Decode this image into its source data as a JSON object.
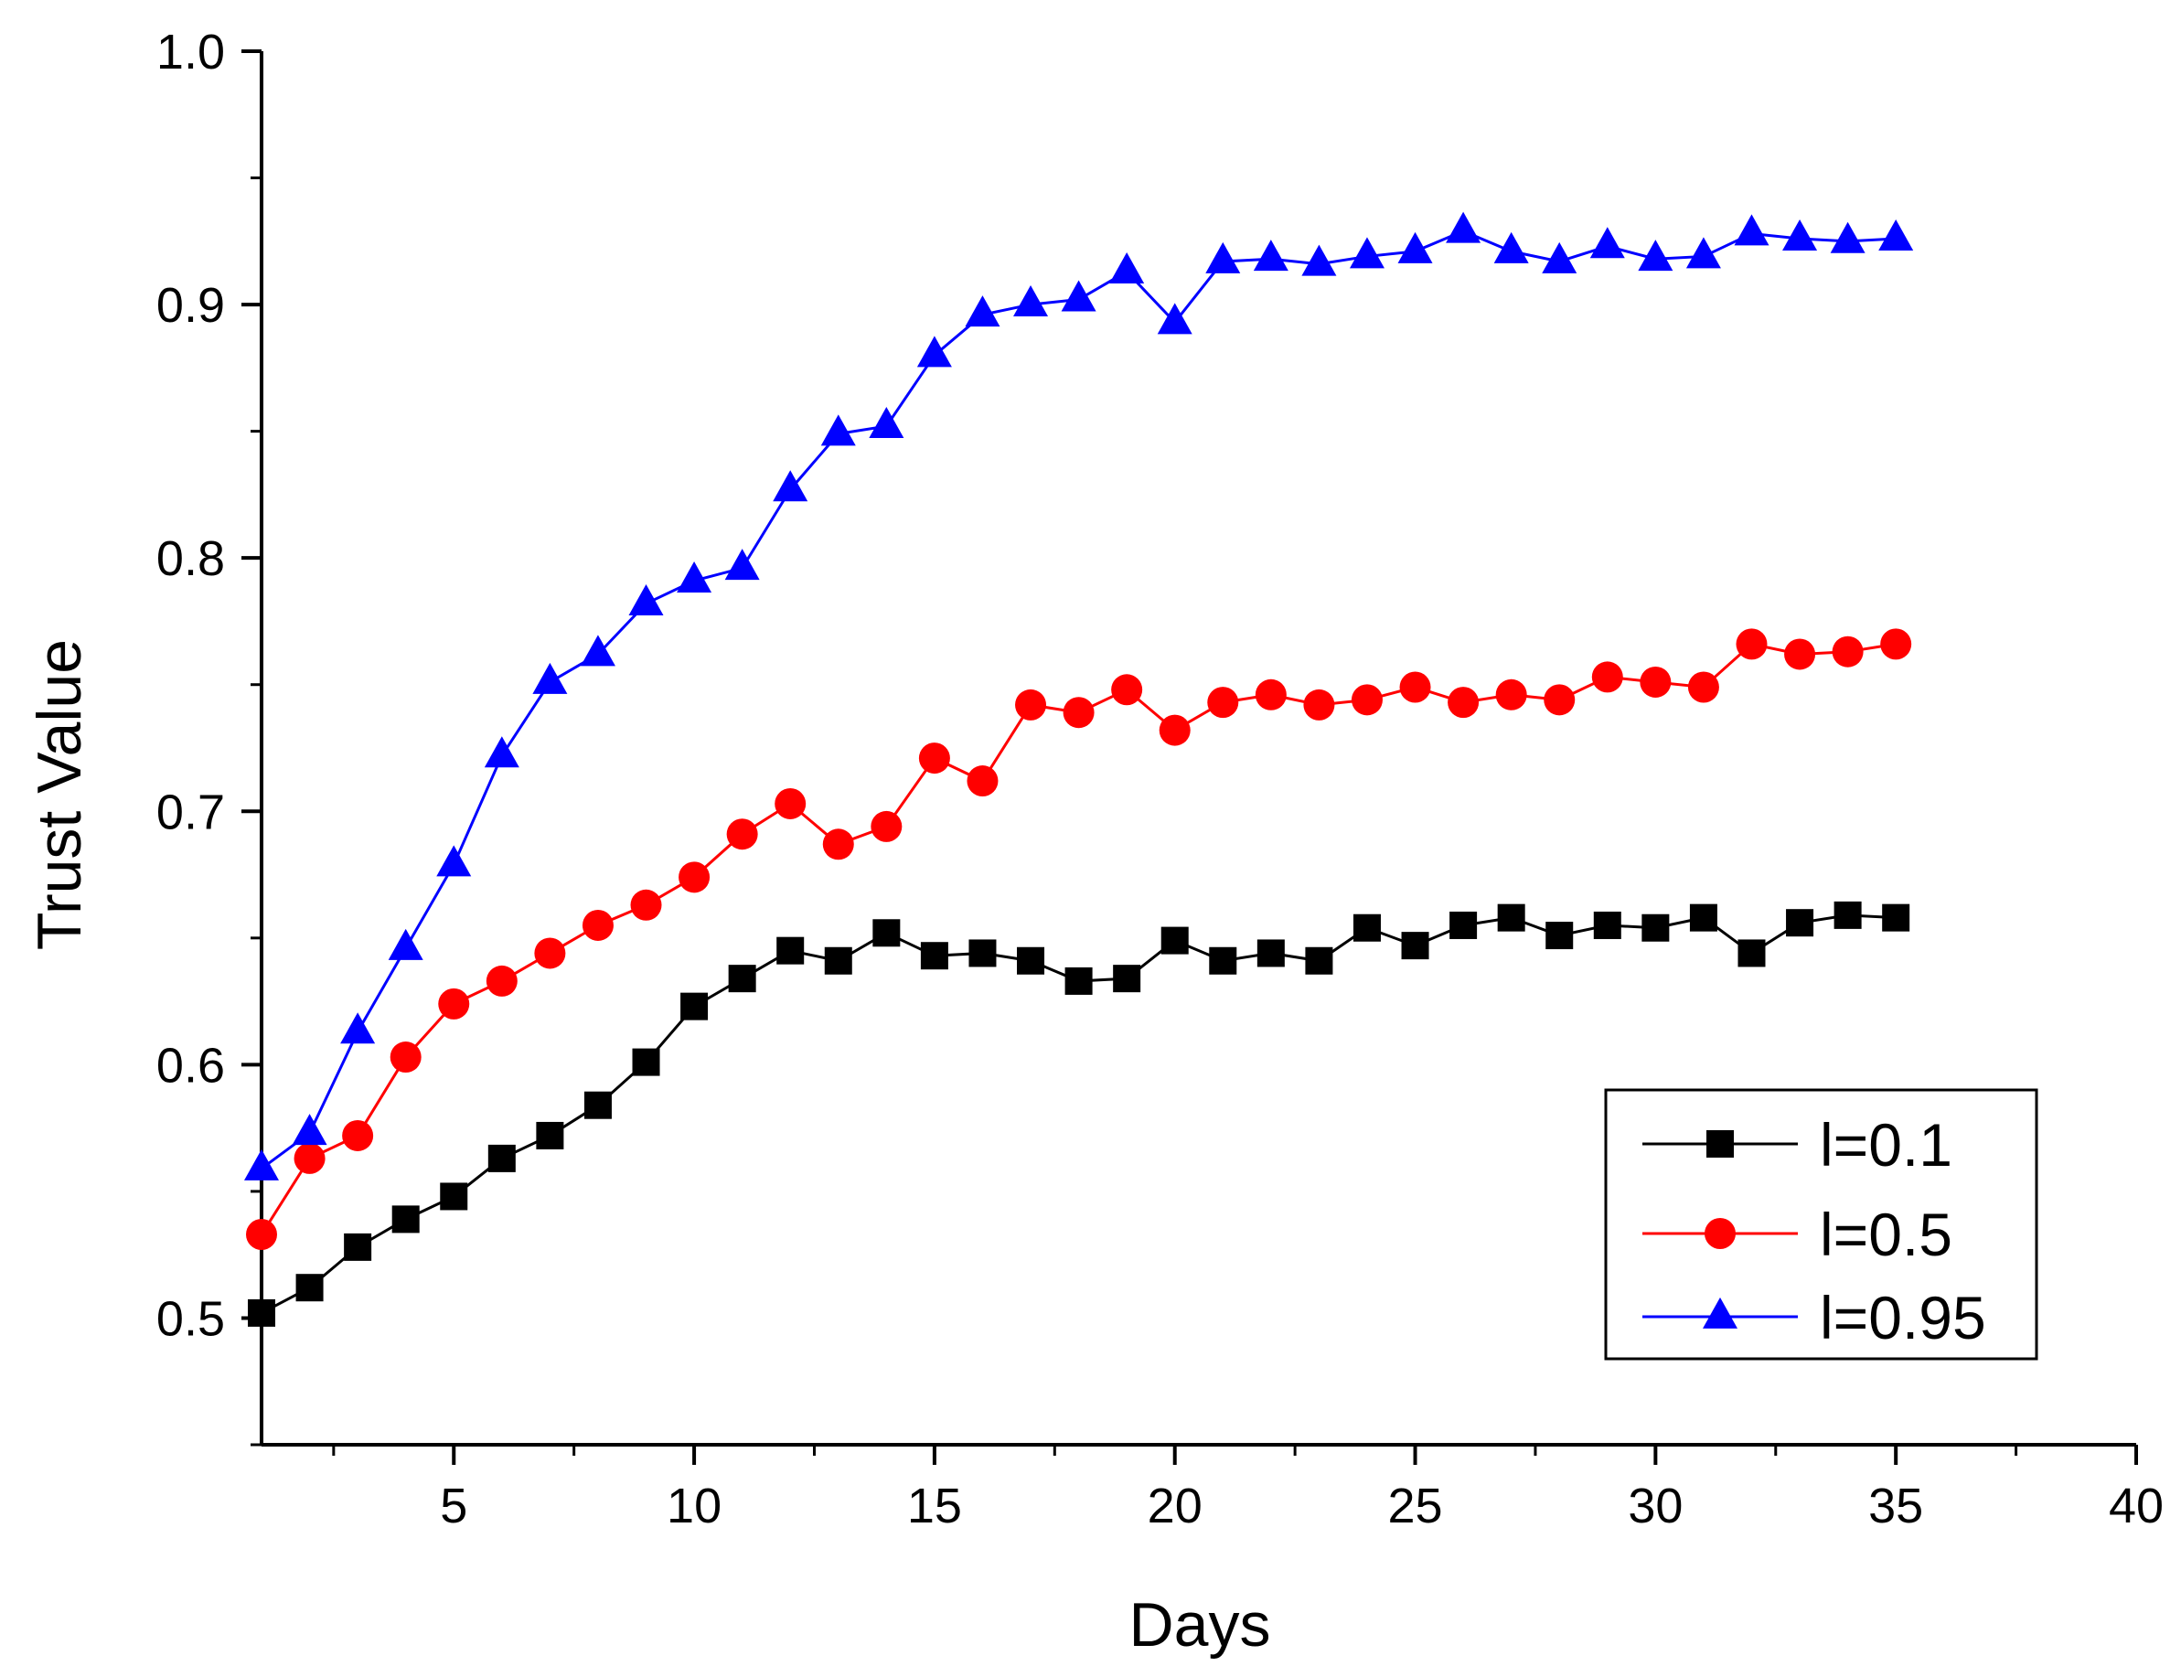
{
  "chart_data": {
    "type": "line",
    "title": "",
    "xlabel": "Days",
    "ylabel": "Trust Value",
    "xlim": [
      1,
      40
    ],
    "ylim": [
      0.45,
      1.0
    ],
    "x_ticks": [
      5,
      10,
      15,
      20,
      25,
      30,
      35,
      40
    ],
    "x_tick_labels": [
      "5",
      "10",
      "15",
      "20",
      "25",
      "30",
      "35",
      "40"
    ],
    "y_ticks": [
      0.5,
      0.6,
      0.7,
      0.8,
      0.9,
      1.0
    ],
    "y_tick_labels": [
      "0.5",
      "0.6",
      "0.7",
      "0.8",
      "0.9",
      "1.0"
    ],
    "grid": false,
    "legend_position": "bottom-right",
    "x": [
      1,
      2,
      3,
      4,
      5,
      6,
      7,
      8,
      9,
      10,
      11,
      12,
      13,
      14,
      15,
      16,
      17,
      18,
      19,
      20,
      21,
      22,
      23,
      24,
      25,
      26,
      27,
      28,
      29,
      30,
      31,
      32,
      33,
      34,
      35
    ],
    "series": [
      {
        "name": "l=0.1",
        "color": "#000000",
        "marker": "square",
        "values": [
          0.502,
          0.512,
          0.528,
          0.539,
          0.548,
          0.563,
          0.572,
          0.584,
          0.601,
          0.623,
          0.634,
          0.645,
          0.641,
          0.652,
          0.643,
          0.644,
          0.641,
          0.633,
          0.634,
          0.649,
          0.641,
          0.644,
          0.641,
          0.654,
          0.647,
          0.655,
          0.658,
          0.651,
          0.655,
          0.654,
          0.658,
          0.644,
          0.656,
          0.659,
          0.658
        ]
      },
      {
        "name": "l=0.5",
        "color": "#ff0000",
        "marker": "circle",
        "values": [
          0.533,
          0.563,
          0.572,
          0.603,
          0.624,
          0.633,
          0.644,
          0.655,
          0.663,
          0.674,
          0.691,
          0.703,
          0.687,
          0.694,
          0.721,
          0.712,
          0.742,
          0.739,
          0.748,
          0.732,
          0.743,
          0.746,
          0.742,
          0.744,
          0.749,
          0.743,
          0.746,
          0.744,
          0.753,
          0.751,
          0.749,
          0.766,
          0.762,
          0.763,
          0.766
        ]
      },
      {
        "name": "l=0.95",
        "color": "#0000ff",
        "marker": "triangle",
        "values": [
          0.559,
          0.573,
          0.613,
          0.646,
          0.679,
          0.722,
          0.751,
          0.762,
          0.782,
          0.791,
          0.796,
          0.827,
          0.849,
          0.852,
          0.88,
          0.896,
          0.9,
          0.902,
          0.913,
          0.893,
          0.917,
          0.918,
          0.916,
          0.919,
          0.921,
          0.929,
          0.921,
          0.917,
          0.923,
          0.918,
          0.919,
          0.928,
          0.926,
          0.925,
          0.926
        ]
      }
    ]
  }
}
